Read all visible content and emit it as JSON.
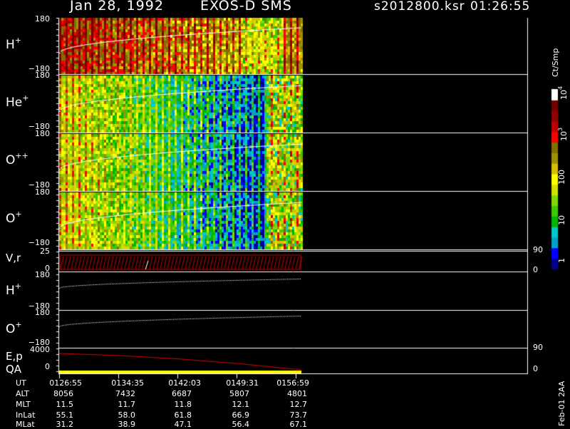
{
  "header": {
    "date": "Jan 28, 1992",
    "instrument": "EXOS-D SMS",
    "file": "s2012800.ksr",
    "time": "01:26:55"
  },
  "colorbar": {
    "units": "Ct/Smp",
    "labels": [
      {
        "id": "1e4",
        "base": "10",
        "exp": "4",
        "value": 10000
      },
      {
        "id": "1e3",
        "base": "10",
        "exp": "3",
        "value": 1000
      },
      {
        "id": "100",
        "base": "100",
        "exp": "",
        "value": 100
      },
      {
        "id": "10",
        "base": "10",
        "exp": "",
        "value": 10
      },
      {
        "id": "1",
        "base": "1",
        "exp": "",
        "value": 1
      }
    ],
    "colors": [
      "#00008c",
      "#0000ff",
      "#00a0c8",
      "#00c8c8",
      "#00b400",
      "#40c800",
      "#80d800",
      "#d0e000",
      "#ffff00",
      "#d8c000",
      "#a09000",
      "#807000",
      "#ff0000",
      "#c00000",
      "#900000",
      "#700000",
      "#ffffff"
    ]
  },
  "panels": [
    {
      "id": "h-plus",
      "species": "H",
      "charge": "+",
      "ymax": "180",
      "ymin": "−180"
    },
    {
      "id": "he-plus",
      "species": "He",
      "charge": "+",
      "ymax": "180",
      "ymin": "−180"
    },
    {
      "id": "o-plus-plus",
      "species": "O",
      "charge": "++",
      "ymax": "180",
      "ymin": "−180"
    },
    {
      "id": "o-plus",
      "species": "O",
      "charge": "+",
      "ymax": "180",
      "ymin": "−180"
    }
  ],
  "vr_panel": {
    "label": "V,r",
    "left_max": "25",
    "left_min": "0",
    "right_max": "90",
    "right_min": "0"
  },
  "line_panels": [
    {
      "id": "h-plus-line",
      "species": "H",
      "charge": "+",
      "ymax": "180",
      "ymin": "−180"
    },
    {
      "id": "o-plus-line",
      "species": "O",
      "charge": "+",
      "ymax": "180",
      "ymin": "−180"
    }
  ],
  "ep_panel": {
    "label1": "E,p",
    "label2": "QA",
    "left_max": "4000",
    "left_min": "0",
    "right_max": "90",
    "right_min": "0"
  },
  "footer": {
    "stamp": "Feb-01 2AA"
  },
  "table": {
    "rows": [
      {
        "name": "UT",
        "values": [
          "0126:55",
          "0134:35",
          "0142:03",
          "0149:31",
          "0156:59"
        ]
      },
      {
        "name": "ALT",
        "values": [
          "8056",
          "7432",
          "6687",
          "5807",
          "4801"
        ]
      },
      {
        "name": "MLT",
        "values": [
          "11.5",
          "11.7",
          "11.8",
          "12.1",
          "12.7"
        ]
      },
      {
        "name": "InLat",
        "values": [
          "55.1",
          "58.0",
          "61.8",
          "66.9",
          "73.7"
        ]
      },
      {
        "name": "MLat",
        "values": [
          "31.2",
          "38.9",
          "47.1",
          "56.4",
          "67.1"
        ]
      }
    ]
  },
  "chart_data": {
    "type": "heatmap",
    "x_unit": "UT",
    "x": [
      "01:26:55",
      "01:34:35",
      "01:42:03",
      "01:49:31",
      "01:56:59"
    ],
    "y_range": [
      -180,
      180
    ],
    "series": [
      {
        "name": "H+",
        "white_line_y": [
          -22,
          0,
          20,
          36,
          50
        ]
      },
      {
        "name": "He+",
        "white_line_y": [
          -40,
          -18,
          8,
          30,
          50
        ]
      },
      {
        "name": "O++",
        "white_line_y": [
          -48,
          -28,
          0,
          22,
          50
        ]
      },
      {
        "name": "O+",
        "white_line_y": [
          -48,
          -28,
          0,
          22,
          50
        ]
      },
      {
        "name": "H+ (line)",
        "y": [
          -12,
          15,
          40,
          60,
          75
        ]
      },
      {
        "name": "O+ (line)",
        "y": [
          -12,
          15,
          40,
          60,
          75
        ]
      },
      {
        "name": "E",
        "y": [
          3000,
          2500,
          1800,
          1000,
          200
        ]
      }
    ],
    "color_scale": "log",
    "color_range": [
      1,
      10000
    ],
    "data_extent_ut": [
      "01:26:55",
      "01:59:30"
    ]
  }
}
